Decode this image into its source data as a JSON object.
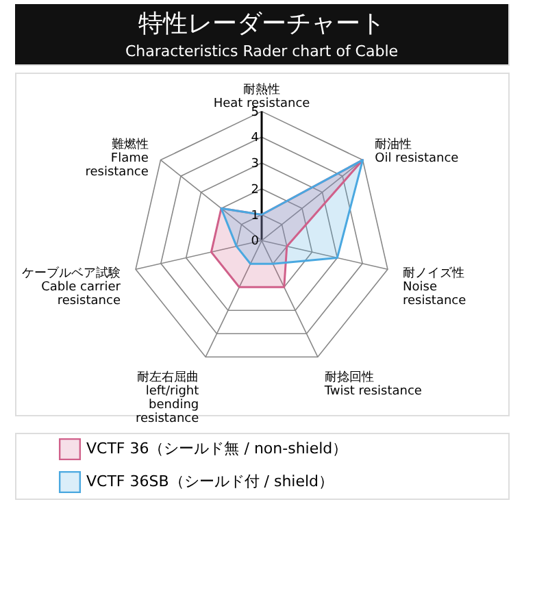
{
  "chart_data": {
    "type": "radar",
    "title": "特性レーダーチャート",
    "subtitle": "Characteristics Rader chart of Cable",
    "categories": [
      "耐熱性\nHeat resistance",
      "耐油性\nOil resistance",
      "耐ノイズ性\nNoise\nresistance",
      "耐捻回性\nTwist resistance",
      "耐左右屈曲\nleft/right\nbending\nresistance",
      "ケーブルベア試験\nCable carrier\nresistance",
      "難燃性\nFlame\nresistance"
    ],
    "series": [
      {
        "name": "VCTF 36（シールド無 / non-shield）",
        "color": "#d0608a",
        "values": [
          1,
          5,
          1,
          2,
          2,
          2,
          2
        ]
      },
      {
        "name": "VCTF 36SB（シールド付 / shield）",
        "color": "#4aa8e0",
        "values": [
          1,
          5,
          3,
          1,
          1,
          1,
          2
        ]
      }
    ],
    "ylim": [
      0,
      5
    ],
    "yticks": [
      0,
      1,
      2,
      3,
      4,
      5
    ],
    "legend": "bottom left",
    "grid": true
  }
}
